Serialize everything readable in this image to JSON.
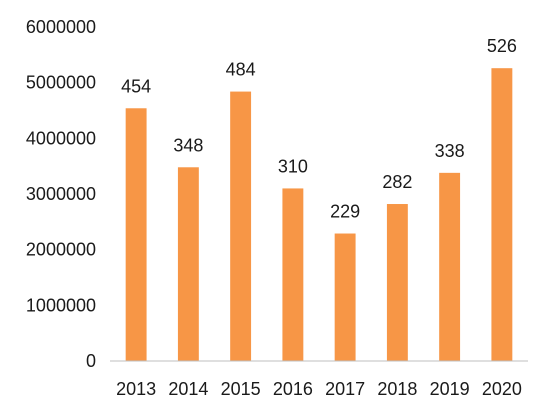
{
  "chart_data": {
    "type": "bar",
    "categories": [
      "2013",
      "2014",
      "2015",
      "2016",
      "2017",
      "2018",
      "2019",
      "2020"
    ],
    "values": [
      4540000,
      3480000,
      4840000,
      3100000,
      2290000,
      2820000,
      3380000,
      5260000
    ],
    "data_labels": [
      "454",
      "348",
      "484",
      "310",
      "229",
      "282",
      "338",
      "526"
    ],
    "yticks": [
      "0",
      "1000000",
      "2000000",
      "3000000",
      "4000000",
      "5000000",
      "6000000"
    ],
    "ylim": [
      0,
      6000000
    ],
    "grid": false,
    "legend": "none",
    "bar_color": "#F79646"
  }
}
